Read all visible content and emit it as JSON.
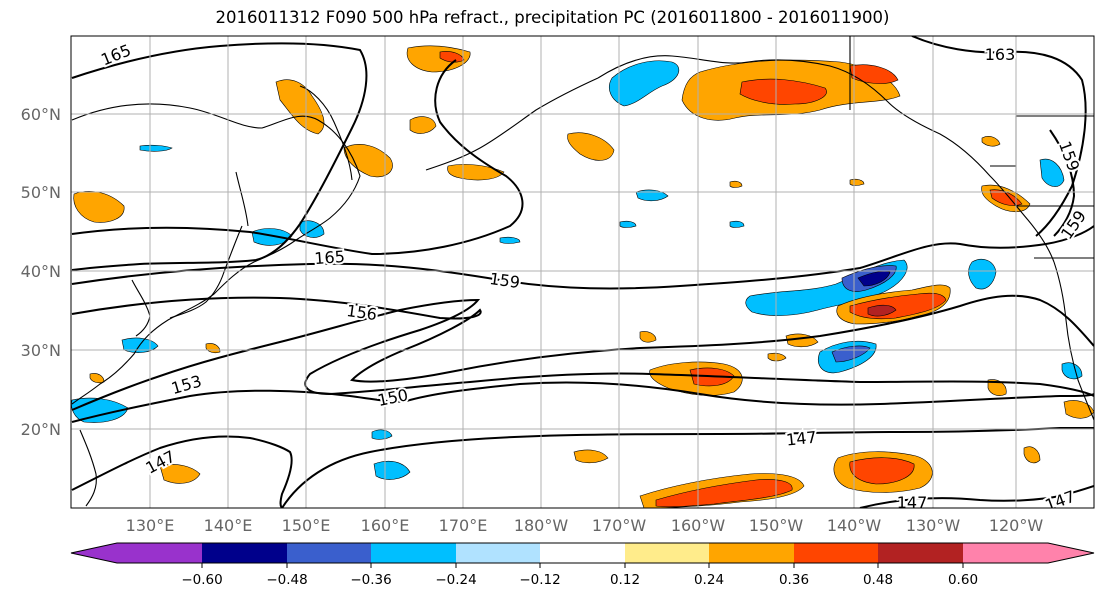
{
  "title": "2016011312 F090 500 hPa refract., precipitation PC (2016011800 - 2016011900)",
  "lat_labels": [
    "60°N",
    "50°N",
    "40°N",
    "30°N",
    "20°N"
  ],
  "lon_labels": [
    "130°E",
    "140°E",
    "150°E",
    "160°E",
    "170°E",
    "180°W",
    "170°W",
    "160°W",
    "150°W",
    "140°W",
    "130°W",
    "120°W"
  ],
  "contour_labels": [
    "165",
    "163",
    "165",
    "159",
    "159",
    "159",
    "156",
    "153",
    "150",
    "147",
    "147",
    "147",
    "147"
  ],
  "colorbar": {
    "colors": [
      "#9932cc",
      "#00008b",
      "#3a5fcd",
      "#00bfff",
      "#b0e2ff",
      "#ffffff",
      "#ffec8b",
      "#ffa500",
      "#ff4500",
      "#b22222",
      "#ff82ab"
    ],
    "tick_labels": [
      "−0.60",
      "−0.48",
      "−0.36",
      "−0.24",
      "−0.12",
      "0.12",
      "0.24",
      "0.36",
      "0.48",
      "0.60"
    ]
  },
  "colors": {
    "contour": "#000000",
    "coast": "#000000",
    "grid": "#b0b0b0"
  }
}
